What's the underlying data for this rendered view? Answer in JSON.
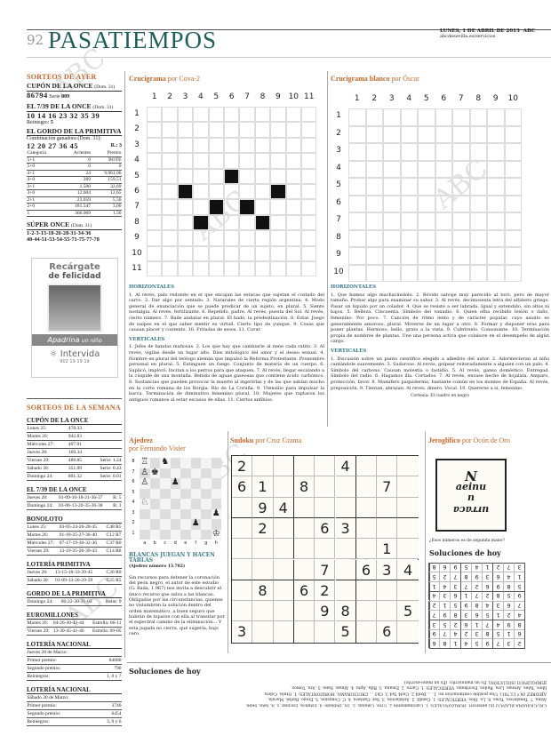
{
  "header": {
    "page": "92",
    "section": "PASATIEMPOS",
    "date": "LUNES, 1 DE ABRIL DE 2013",
    "brand": "ABC",
    "url": "abcdesevilla.es/servicios"
  },
  "ayer": {
    "title": "SORTEOS DE AYER",
    "cupon": {
      "label": "CUPÓN DE LA ONCE",
      "date": "(Dom. 31)",
      "number": "86794",
      "serie_label": "Serie",
      "serie": "009"
    },
    "siete": {
      "label": "EL 7/39 DE LA ONCE",
      "date": "(Dom. 31)",
      "numbers": "10 14 16 23 32 35 39",
      "reintegro_label": "Reintegro:",
      "reintegro": "5"
    },
    "gordo": {
      "label": "EL GORDO DE LA PRIMITIVA",
      "combo_label": "Combinación ganadora (Dom. 31):",
      "numbers": "12 20 27 36 45",
      "r": "R.: 3",
      "headers": [
        "Categoría",
        "Acientes",
        "Premio"
      ],
      "rows": [
        [
          "5+1",
          "0",
          "BOTE"
        ],
        [
          "5+0",
          "0",
          "0"
        ],
        [
          "4+1",
          "24",
          "9.961,06"
        ],
        [
          "4+0",
          "269",
          "159,51"
        ],
        [
          "3+1",
          "1.500",
          "32,69"
        ],
        [
          "3+0",
          "12.604",
          "12,65"
        ],
        [
          "2+1",
          "23.059",
          "5,56"
        ],
        [
          "2+0",
          "181.547",
          "3,00"
        ],
        [
          "1",
          "366.069",
          "1,50"
        ]
      ]
    },
    "super": {
      "label": "SÚPER ONCE",
      "date": "(Dom. 31)",
      "line1": "1-2-3-13-18-26-28-31-34-36",
      "line2": "40-44-51-53-54-55-71-75-77-78"
    }
  },
  "ad": {
    "headline1": "Recárgate",
    "headline2": "de felicidad",
    "banner1": "Apadrina",
    "banner2": "un niño",
    "brand": "Intervida",
    "phone": "902 19 19 19"
  },
  "semana": {
    "title": "SORTEOS DE LA SEMANA",
    "cupon": {
      "label": "CUPÓN DE LA ONCE",
      "rows": [
        [
          "Lunes 25:",
          "478.33",
          ""
        ],
        [
          "Martes 26:",
          "942.83",
          ""
        ],
        [
          "Miércoles 27:",
          "407.01",
          ""
        ],
        [
          "Jueves 28:",
          "169.34",
          ""
        ],
        [
          "Viernes 29:",
          "488.85",
          "Serie: 1.24"
        ],
        [
          "Sábado 30:",
          "351.09",
          "Serie: 0.43"
        ],
        [
          "Domingo 24:",
          "801.32",
          "Serie: 0.01"
        ]
      ]
    },
    "siete": {
      "label": "EL 7/39 DE LA ONCE",
      "rows": [
        [
          "Jueves 28:",
          "01-09-10-18-21-36-37",
          "R: 5"
        ],
        [
          "Domingo 24:",
          "03-06-13-20-35-36-38",
          "R: 1"
        ]
      ]
    },
    "bonoloto": {
      "label": "BONOLOTO",
      "rows": [
        [
          "Lunes 25:",
          "03-05-24-26-28-45",
          "C48 R5"
        ],
        [
          "Martes 26:",
          "01-18-25-27-36-40",
          "C12 R7"
        ],
        [
          "Miércoles 27:",
          "07-17-19-30-32-36",
          "C37 R0"
        ],
        [
          "Viernes 29:",
          "13-19-25-26-39-43",
          "C14 R8"
        ]
      ]
    },
    "primitiva": {
      "label": "LOTERÍA PRIMITIVA",
      "rows": [
        [
          "Jueves 28:",
          "13-15-18-33-39-45",
          "C26 R0"
        ],
        [
          "Sábado 30:",
          "01-09-13-26-29-39",
          "C25 R5"
        ]
      ]
    },
    "gordo": {
      "label": "GORDO DE LA PRIMITIVA",
      "rows": [
        [
          "Domingo 24:",
          "06-22-30-31-03",
          "Reint: 9"
        ]
      ]
    },
    "euro": {
      "label": "EUROMILLONES",
      "rows": [
        [
          "Martes 26:",
          "04-26-30-42-44",
          "Estrella: 06-11"
        ],
        [
          "Viernes 29:",
          "13-30-45-41-46",
          "Estrella: 09-05"
        ]
      ]
    },
    "nac1": {
      "label": "LOTERÍA NACIONAL",
      "date": "Jueves 28 de Marzo:",
      "rows": [
        [
          "Primer premio:",
          "84680"
        ],
        [
          "Segundo premio:",
          "790"
        ],
        [
          "Reintegros:",
          "1, 0 y 7"
        ]
      ]
    },
    "nac2": {
      "label": "LOTERÍA NACIONAL",
      "date": "Sábado 30 de Marzo:",
      "rows": [
        [
          "Primer premio:",
          "3740"
        ],
        [
          "Segundo premio:",
          "6454"
        ],
        [
          "Reintegros:",
          "3, 0 y 6"
        ]
      ]
    }
  },
  "cruci1": {
    "title": "Crucigrama",
    "author": "por Cova-2",
    "cols": [
      "1",
      "2",
      "3",
      "4",
      "5",
      "6",
      "7",
      "8",
      "9",
      "10",
      "11"
    ],
    "rows": [
      "1",
      "2",
      "3",
      "4",
      "5",
      "6",
      "7",
      "8",
      "9",
      "10",
      "11"
    ],
    "black": [
      [
        5,
        6
      ],
      [
        6,
        3
      ],
      [
        6,
        9
      ],
      [
        7,
        5
      ],
      [
        7,
        7
      ],
      [
        8,
        4
      ],
      [
        8,
        8
      ]
    ],
    "h_title": "HORIZONTALES",
    "h_text": "1. Al revés, palo redondo en el que encajan las estacas que sujetan el costado del carro. 2. Dar algo por sentado. 3. Naturales de cierta región argentina. 4. Modo general de enunciación que se puede predicar de un sujeto, en plural. 5. Siente nostalgia. Al revés, fertilizante. 6. Repetido, padre. Al revés, puesta del Sol. Al revés, cierto número. 7. Baile andaluz en plural. El hado, la predestinación. 8. Estar. Juego de naipes en el que saber mentir es virtud. Cierto tipo de yunque. 9. Cosas que causan placer y contento. 10. Fritadas de sesos. 11. Curar.",
    "v_title": "VERTICALES",
    "v_text": "1. Jefes de bandas mafiosas. 2. Los que hay que cambiarle al nene cada ratito. 3. Al revés, vigilas desde un lugar alto. Dios mitológico del amor y el deseo sexual. 4. Nombre en plural del teólogo alemán que impulsó la Reforma Protestante. Pronombre personal en plural. 5. Extinguen un fuego. Conjunto de materia de un cuerpo. 6. Suplicó, imploró. Incitan a los perros para que ataquen. 7. Al revés, llegar escalando a la cúspide de una montaña. Bebida de aguas gaseosas que contiene ácido carbónico. 8. Sustancias que pueden provocar la muerte al ingerirlas y de las que sabían mucho en la corte romana de los Borgia. Río de La Coruña. 9. Utensilio para impulsar la barca. Terminación de diminutivo femenino plural. 10. Mujeres que raptaron los antiguos romanos al estar escasos de ellas. 11. Ciertos anfibios."
  },
  "cruci2": {
    "title": "Crucigrama blanco",
    "author": "por Óscar",
    "cols": [
      "1",
      "2",
      "3",
      "4",
      "5",
      "6",
      "7",
      "8",
      "9",
      "10"
    ],
    "rows": [
      "1",
      "2",
      "3",
      "4",
      "5",
      "6",
      "7",
      "8",
      "9",
      "10"
    ],
    "h_title": "HORIZONTALES",
    "h_text": "1. Que humea algo machacándolo. 2. Bóvido salvaje muy parecido al toro, pero de mayor tamaño. Probar algo para examinar su sabor. 3. Al revés, decimosexta letra del alfabeto griego. Pasar un líquido por un colador. 4. Que se resiste a ser labrada. Igual y extendido, sin altos ni bajos. 5. Belleza. Cincuenta. Símbolo del vanadio. 6. Quien ofha recibido lesión o daño, femenino. Por poco. 7. Canción de ritmo lento y de carácter popular, cuyo asunto es generalmente amoroso, plural. Moverse de un lugar a otro. 8. Formar y disponer eras para poner plantas. Hermoso, bello, grato a la vista. 9. Cubrírselo. Consonante. 10. Terminación propia de nombres de plantas. Une una persona activa que colabore en el desempeño de algún cargo.",
    "v_title": "VERTICALES",
    "v_text": "1. Discusión sobre un punto científico elegido a albedrío del autor. 2. Adormecieran al niño cantándole suavemente. 3. Sudoroso. Al revés, golpear reiteradamente a alguien con un palo. 4. Símbolo del carbono. Causan molestia o fastidio. 5. Al revés, ganso doméstico. Entregad. Símbolo del radio. 6. Hagamos illa. Cortados. 7. Al revés, envase hecho de hojalata. Amparo, protección, favor. 8. Mamífero paquidermo, bastante común en los montes de España. Al revés, preposición. 9. Tientan, abrazan. Al revés, dinero. Vocal. 10. Quererse a sí, femenino.",
    "credit": "Cortesía: El cuadro en negro"
  },
  "ajedrez": {
    "title": "Ajedrez",
    "author": "por Fernando Visier",
    "files": [
      "a",
      "b",
      "c",
      "d",
      "e",
      "f",
      "g",
      "h"
    ],
    "ranks": [
      "8",
      "7",
      "6",
      "5",
      "4",
      "3",
      "2",
      "1"
    ],
    "pieces": [
      [
        "a8",
        "♖"
      ],
      [
        "c8",
        "♞"
      ],
      [
        "a7",
        "♙"
      ],
      [
        "b7",
        "♚"
      ],
      [
        "a6",
        "♙"
      ],
      [
        "d6",
        "♟"
      ],
      [
        "a4",
        "♘"
      ],
      [
        "h3",
        "♟"
      ],
      [
        "f2",
        "♟"
      ],
      [
        "h1",
        "♔"
      ]
    ],
    "heading": "BLANCAS JUEGAN Y HACEN TABLAS",
    "sub": "(Ajedrez número 13.702)",
    "text": "Sin recursos para detener la coronación del peón negro, el autor de este estudio (G. Bada, 1.967) nos invita a descubrir el único recurso que salva a las blancas. Obligadas por las circunstancias, quienes no vislumbren la solución dentro del orden matemático, a buen seguro que habrán de toparse con ella al transitar por el espectral camino de la eliminación… Y esta jugada no cierra, qué sugería, bajo cero."
  },
  "sudoku": {
    "title": "Sudoku",
    "author": "por Cruz Grama",
    "grid": [
      "2....4...",
      "61.8...7.",
      ".94......",
      ".2..63...",
      ".......1.",
      "....7.634",
      ".8.62....",
      "....98..5",
      "3....5.6."
    ]
  },
  "jeroglifico": {
    "title": "Jeroglífico",
    "author": "por Ocón de Oro",
    "line1": "N",
    "line2": "aeinu",
    "line3": "u",
    "line4": "urraca",
    "question": "¿Esos números es de segunda mano?"
  },
  "soluciones_hoy": {
    "title": "Soluciones de hoy",
    "sudoku_solution": [
      "237954186",
      "615832479",
      "894716253",
      "421563897",
      "763489512",
      "958271634",
      "589627341",
      "146398725",
      "372145968"
    ]
  },
  "soluciones_bottom": {
    "title": "Soluciones de hoy",
    "lines": [
      "CRUCIGRAMA BLANCO (El anterior). HORIZONTALES: 1. Calcinamiento 2. Uros. Catalán. 3. Tri. Doblado. 4. Estanca. Encinar. 5. A. Asta. Sebe.",
      "Atina. 7. Tenebroso. Tiras. 8. Lo. Dios. VERTICALES: 1. Candil. 2. Antelación. 3. Ser. Cantera. 4. C. Comisión. 5. Enojo. Barbé. Macala.",
      "AJEDREZ (N.º 13.701). Una posible continuación es: 1. ... Dxd4 2. Cxd4 Ta4 3. Cb3 ... CRUCIGRAMA. HORIZONTALES: 1. Orate. Cobra.",
      "libre. Tales. Arenas. Lira. Rudos. Escribano. VERTICALES: 1. Carro. 2. Emana. 3. Rifa. Apto. 4. Almas. Sano. 5. Ara. Tomos.",
      "JEROGLÍFICO (SOLUCIÓN). Es un manuscrito: (Es un mano-escrito)."
    ]
  },
  "watermark": "ABC"
}
